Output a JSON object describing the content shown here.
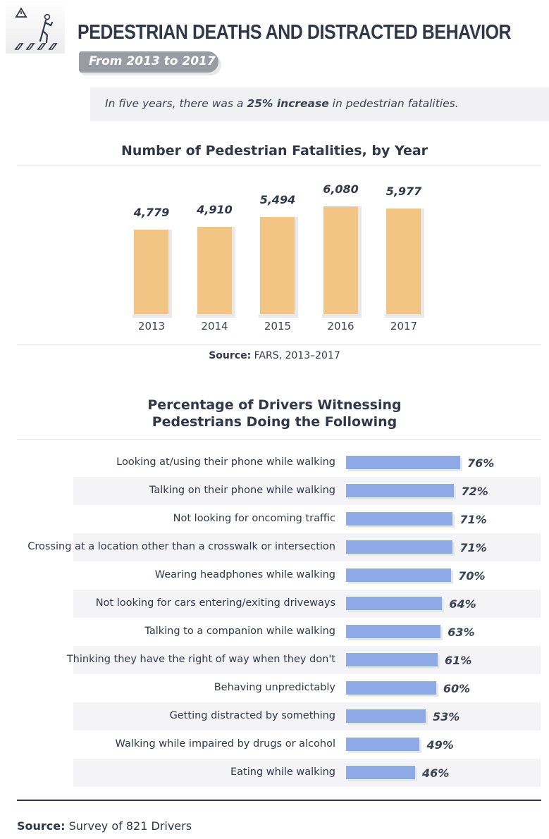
{
  "header": {
    "title": "PEDESTRIAN DEATHS AND DISTRACTED BEHAVIOR",
    "subtitle": "From 2013 to 2017",
    "icon": "pedestrian-crosswalk-warning-icon"
  },
  "callout": {
    "before": "In five years, there was a ",
    "bold": "25% increase",
    "after": " in pedestrian fatalities."
  },
  "chart_data": [
    {
      "type": "bar",
      "title": "Number of Pedestrian Fatalities, by Year",
      "categories": [
        "2013",
        "2014",
        "2015",
        "2016",
        "2017"
      ],
      "values": [
        4779,
        4910,
        5494,
        6080,
        5977
      ],
      "value_labels": [
        "4,779",
        "4,910",
        "5,494",
        "6,080",
        "5,977"
      ],
      "ylim": [
        0,
        6080
      ],
      "color": "#f2c585",
      "source_label": "Source:",
      "source_text": " FARS, 2013–2017"
    },
    {
      "type": "bar",
      "orientation": "horizontal",
      "title_line1": "Percentage of Drivers Witnessing",
      "title_line2": "Pedestrians Doing the Following",
      "categories": [
        "Looking at/using their phone while walking",
        "Talking on their phone while walking",
        "Not looking for oncoming traffic",
        "Crossing at a location other than a crosswalk or intersection",
        "Wearing headphones while walking",
        "Not looking for cars entering/exiting driveways",
        "Talking to a companion while walking",
        "Thinking they have the right of way when they don't",
        "Behaving unpredictably",
        "Getting distracted by something",
        "Walking while impaired by drugs or alcohol",
        "Eating while walking"
      ],
      "values": [
        76,
        72,
        71,
        71,
        70,
        64,
        63,
        61,
        60,
        53,
        49,
        46
      ],
      "value_labels": [
        "76%",
        "72%",
        "71%",
        "71%",
        "70%",
        "64%",
        "63%",
        "61%",
        "60%",
        "53%",
        "49%",
        "46%"
      ],
      "xlim": [
        0,
        100
      ],
      "color": "#8eaae6",
      "source_label": "Source:",
      "source_text": " Survey of 821 Drivers"
    }
  ]
}
